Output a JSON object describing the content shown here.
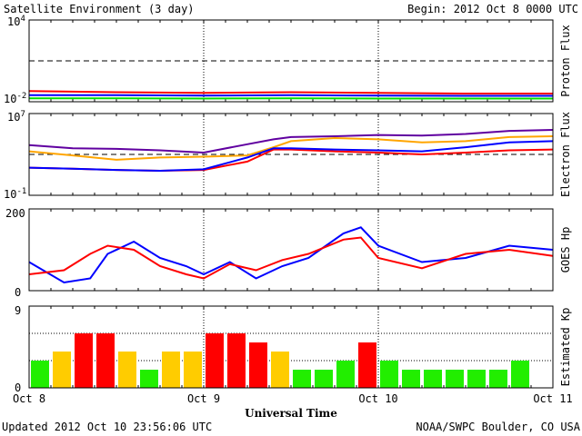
{
  "header": {
    "title": "Satellite Environment (3 day)",
    "begin": "Begin:  2012 Oct 8 0000 UTC"
  },
  "footer": {
    "updated": "Updated 2012 Oct 10 23:56:06 UTC",
    "credit": "NOAA/SWPC Boulder, CO USA"
  },
  "chart_data": [
    {
      "type": "line",
      "ylabel": "Proton Flux",
      "yscale": "log",
      "ylim": [
        0.01,
        10000
      ],
      "ytick_labels": {
        "top": {
          "base": "10",
          "exp": "4"
        },
        "bottom": {
          "base": "10",
          "exp": "-2"
        }
      },
      "threshold": 10,
      "x_days": [
        0,
        0.5,
        1,
        1.5,
        2,
        2.5,
        3
      ],
      "series": [
        {
          "color": "#ff0000",
          "values": [
            0.06,
            0.05,
            0.045,
            0.05,
            0.045,
            0.04,
            0.04
          ]
        },
        {
          "color": "#0000ff",
          "values": [
            0.03,
            0.03,
            0.028,
            0.03,
            0.028,
            0.027,
            0.027
          ]
        },
        {
          "color": "#00e000",
          "values": [
            0.018,
            0.018,
            0.017,
            0.018,
            0.017,
            0.017,
            0.017
          ]
        }
      ]
    },
    {
      "type": "line",
      "ylabel": "Electron Flux",
      "yscale": "log",
      "ylim": [
        0.1,
        10000000
      ],
      "ytick_labels": {
        "top": {
          "base": "10",
          "exp": "7"
        },
        "bottom": {
          "base": "10",
          "exp": "-1"
        }
      },
      "threshold": 1000,
      "x_days": [
        0,
        0.25,
        0.5,
        0.75,
        1.0,
        1.25,
        1.4,
        1.5,
        1.75,
        2.0,
        2.25,
        2.5,
        2.75,
        3.0
      ],
      "series": [
        {
          "color": "#6000a0",
          "values": [
            8000,
            4000,
            3500,
            2500,
            1500,
            10000,
            30000,
            50000,
            60000,
            80000,
            70000,
            100000,
            200000,
            250000
          ]
        },
        {
          "color": "#ffa500",
          "values": [
            2000,
            800,
            300,
            500,
            600,
            800,
            5000,
            20000,
            40000,
            30000,
            15000,
            20000,
            50000,
            60000
          ]
        },
        {
          "color": "#ff0000",
          "values": [
            50,
            40,
            30,
            25,
            30,
            200,
            3000,
            3000,
            2000,
            1500,
            1000,
            1500,
            2500,
            3000
          ]
        },
        {
          "color": "#0000ff",
          "values": [
            50,
            40,
            30,
            25,
            35,
            500,
            4000,
            4000,
            3000,
            2500,
            2000,
            5000,
            15000,
            20000
          ]
        }
      ]
    },
    {
      "type": "line",
      "ylabel": "GOES Hp",
      "ylim": [
        0,
        200
      ],
      "yticks": [
        0,
        200
      ],
      "x_days": [
        0,
        0.2,
        0.35,
        0.45,
        0.6,
        0.75,
        0.9,
        1.0,
        1.15,
        1.3,
        1.45,
        1.6,
        1.8,
        1.9,
        2.0,
        2.25,
        2.5,
        2.75,
        3.0
      ],
      "series": [
        {
          "color": "#0000ff",
          "values": [
            70,
            20,
            30,
            90,
            120,
            80,
            60,
            40,
            70,
            30,
            60,
            80,
            140,
            155,
            110,
            70,
            80,
            110,
            100
          ]
        },
        {
          "color": "#ff0000",
          "values": [
            40,
            50,
            90,
            110,
            100,
            60,
            40,
            30,
            65,
            50,
            75,
            90,
            125,
            130,
            80,
            55,
            90,
            100,
            85
          ]
        }
      ]
    },
    {
      "type": "bar",
      "ylabel": "Estimated Kp",
      "ylim": [
        0,
        9
      ],
      "yticks": [
        0,
        9
      ],
      "bar_hours": 3,
      "values": [
        3,
        4,
        6,
        6,
        4,
        2,
        4,
        4,
        6,
        6,
        5,
        4,
        2,
        2,
        3,
        5,
        3,
        2,
        2,
        2,
        2,
        2,
        3
      ],
      "colors": {
        "quiet": "#22ee00",
        "unsettled": "#ffcc00",
        "storm": "#ff0000"
      }
    }
  ],
  "x_axis": {
    "ticks": [
      "Oct 8",
      "Oct 9",
      "Oct 10",
      "Oct 11"
    ],
    "label": "Universal Time"
  }
}
